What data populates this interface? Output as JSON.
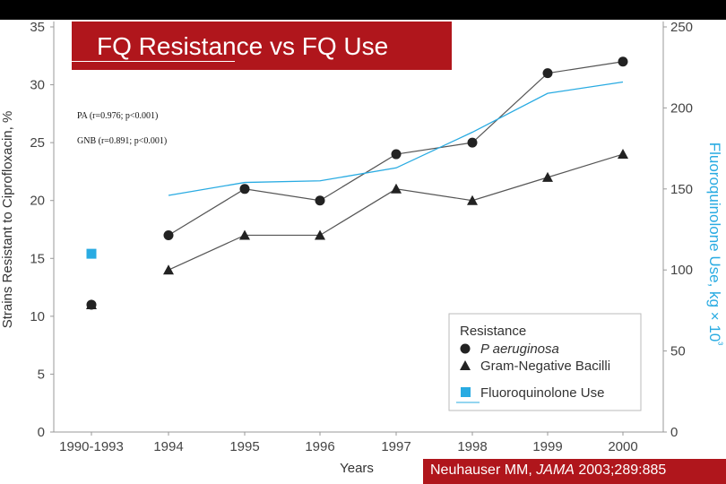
{
  "slide": {
    "title": "FQ Resistance vs FQ Use",
    "stats": [
      "PA (r=0.976; p<0.001)",
      "GNB (r=0.891; p<0.001)"
    ],
    "citation_author": "Neuhauser MM, ",
    "citation_journal": "JAMA",
    "citation_rest": " 2003;289:885"
  },
  "chart_data": {
    "type": "line",
    "categories": [
      "1990-1993",
      "1994",
      "1995",
      "1996",
      "1997",
      "1998",
      "1999",
      "2000"
    ],
    "xlabel": "Years",
    "ylabel": "Strains Resistant to Ciprofloxacin, %",
    "ylabel_right": "Fluoroquinolone Use, kg × 10³",
    "ylim": [
      0,
      35
    ],
    "yticks": [
      "0",
      "5",
      "10",
      "15",
      "20",
      "25",
      "30",
      "35"
    ],
    "ylim_right": [
      0,
      250
    ],
    "yticks_right": [
      "0",
      "50",
      "100",
      "150",
      "200",
      "250"
    ],
    "legend_title": "Resistance",
    "series": [
      {
        "name": "P aeruginosa",
        "legend_italic": "P aeruginosa",
        "marker": "circle",
        "axis": "left",
        "values": [
          11,
          17,
          21,
          20,
          24,
          25,
          31,
          32
        ]
      },
      {
        "name": "Gram-Negative Bacilli",
        "marker": "triangle",
        "axis": "left",
        "values": [
          11,
          14,
          17,
          17,
          21,
          20,
          22,
          24
        ]
      },
      {
        "name": "Fluoroquinolone Use",
        "marker": "square",
        "axis": "right",
        "color": "#29abe2",
        "point_values": [
          110
        ],
        "line_values": [
          null,
          146,
          154,
          155,
          163,
          185,
          209,
          216
        ]
      }
    ]
  }
}
